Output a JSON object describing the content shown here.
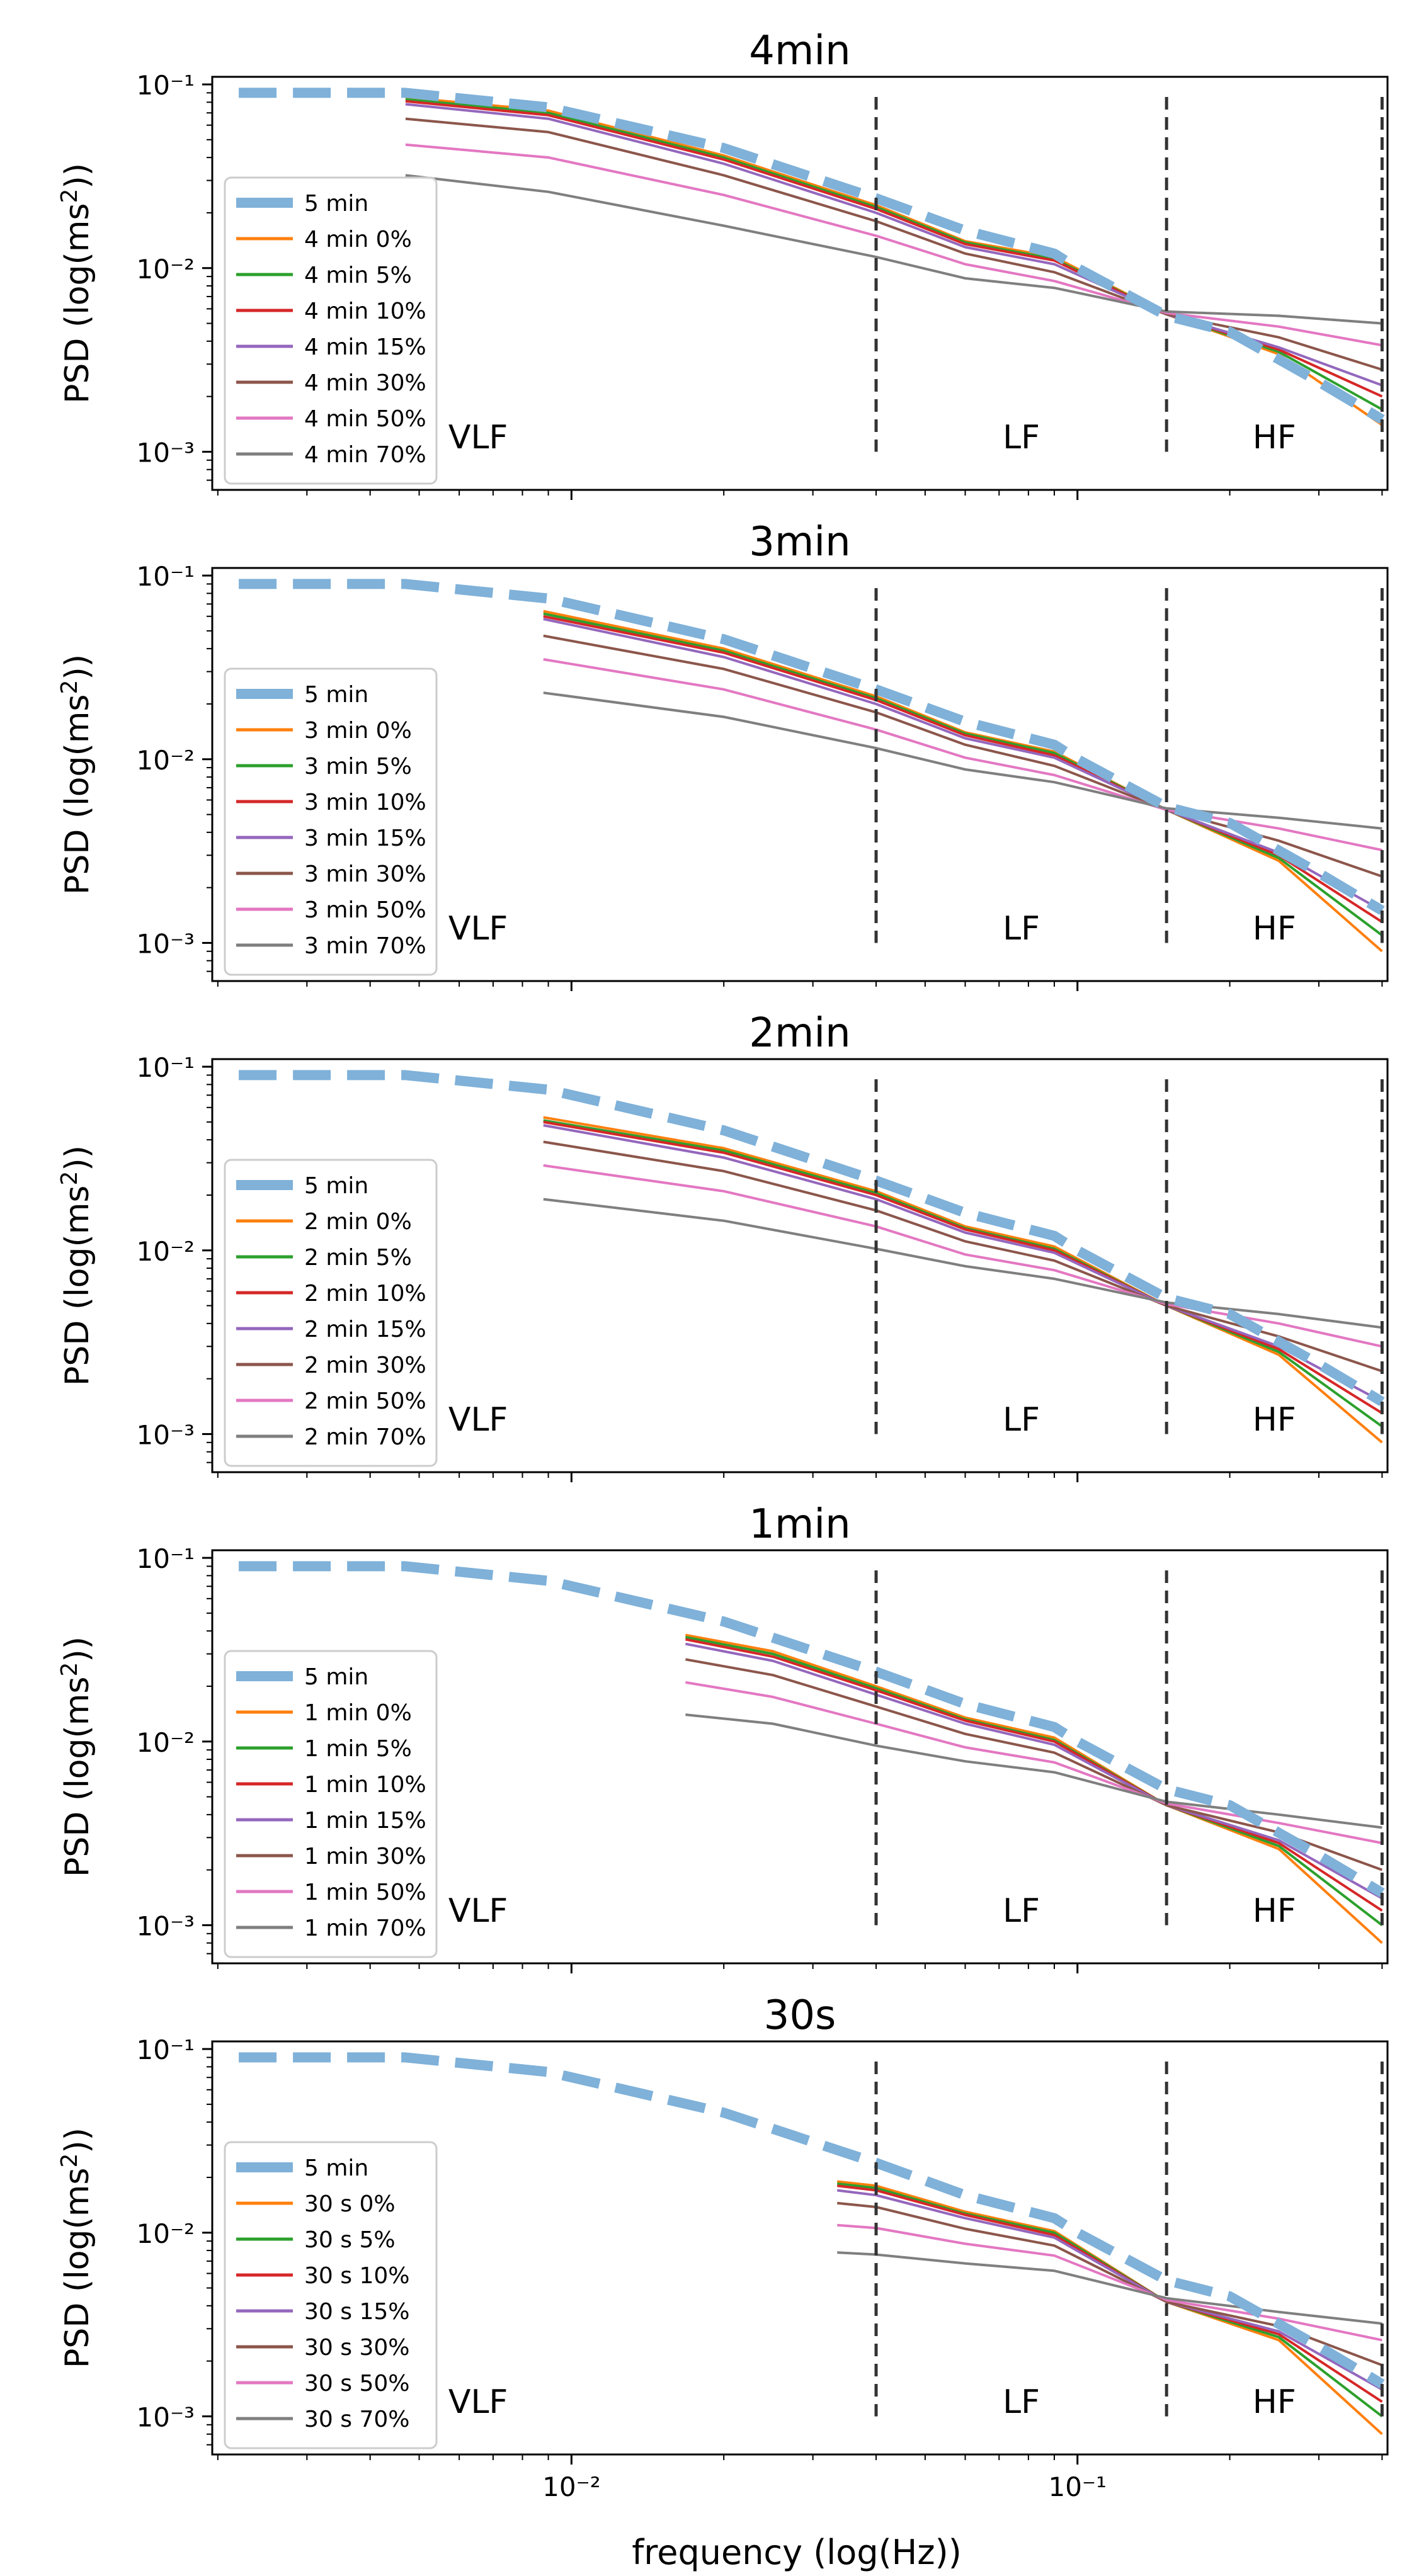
{
  "figure": {
    "xlabel": "frequency (log(Hz))",
    "ylabel_prefix": "PSD (log(ms",
    "ylabel_sup": "2",
    "ylabel_suffix": "))",
    "band_labels": [
      "VLF",
      "LF",
      "HF"
    ],
    "band_boundaries_hz": [
      0.04,
      0.15,
      0.4
    ],
    "x_tick_labels": [
      "10⁻²",
      "10⁻¹"
    ],
    "y_tick_labels": [
      "10⁻¹",
      "10⁻²",
      "10⁻³"
    ]
  },
  "chart_data": [
    {
      "type": "line",
      "title": "4min",
      "xscale": "log",
      "yscale": "log",
      "xlim": [
        0.00195,
        0.41
      ],
      "ylim": [
        0.00062,
        0.11
      ],
      "legend": [
        "5 min",
        "4 min 0%",
        "4 min 5%",
        "4 min 10%",
        "4 min 15%",
        "4 min 30%",
        "4 min 50%",
        "4 min 70%"
      ],
      "reference": {
        "name": "5 min",
        "x": [
          0.0022,
          0.0047,
          0.009,
          0.02,
          0.04,
          0.06,
          0.09,
          0.1,
          0.15,
          0.2,
          0.3,
          0.4
        ],
        "y": [
          0.09,
          0.09,
          0.075,
          0.045,
          0.024,
          0.016,
          0.012,
          0.01,
          0.0055,
          0.0045,
          0.0024,
          0.0015
        ]
      },
      "series": [
        {
          "name": "4 min 0%",
          "x": [
            0.0047,
            0.009,
            0.02,
            0.04,
            0.06,
            0.09,
            0.15,
            0.25,
            0.4
          ],
          "y": [
            0.085,
            0.072,
            0.041,
            0.022,
            0.014,
            0.0115,
            0.0056,
            0.0034,
            0.0014
          ]
        },
        {
          "name": "4 min 5%",
          "x": [
            0.0047,
            0.009,
            0.02,
            0.04,
            0.06,
            0.09,
            0.15,
            0.25,
            0.4
          ],
          "y": [
            0.083,
            0.07,
            0.04,
            0.0215,
            0.0138,
            0.0112,
            0.0056,
            0.0035,
            0.0017
          ]
        },
        {
          "name": "4 min 10%",
          "x": [
            0.0047,
            0.009,
            0.02,
            0.04,
            0.06,
            0.09,
            0.15,
            0.25,
            0.4
          ],
          "y": [
            0.081,
            0.068,
            0.039,
            0.021,
            0.0135,
            0.011,
            0.0056,
            0.0036,
            0.002
          ]
        },
        {
          "name": "4 min 15%",
          "x": [
            0.0047,
            0.009,
            0.02,
            0.04,
            0.06,
            0.09,
            0.15,
            0.25,
            0.4
          ],
          "y": [
            0.078,
            0.065,
            0.037,
            0.02,
            0.013,
            0.0105,
            0.0056,
            0.0037,
            0.0023
          ]
        },
        {
          "name": "4 min 30%",
          "x": [
            0.0047,
            0.009,
            0.02,
            0.04,
            0.06,
            0.09,
            0.15,
            0.25,
            0.4
          ],
          "y": [
            0.065,
            0.055,
            0.032,
            0.018,
            0.012,
            0.0095,
            0.0056,
            0.0042,
            0.0028
          ]
        },
        {
          "name": "4 min 50%",
          "x": [
            0.0047,
            0.009,
            0.02,
            0.04,
            0.06,
            0.09,
            0.15,
            0.25,
            0.4
          ],
          "y": [
            0.047,
            0.04,
            0.025,
            0.015,
            0.0105,
            0.0085,
            0.0057,
            0.0048,
            0.0038
          ]
        },
        {
          "name": "4 min 70%",
          "x": [
            0.0047,
            0.009,
            0.02,
            0.04,
            0.06,
            0.09,
            0.15,
            0.25,
            0.4
          ],
          "y": [
            0.032,
            0.026,
            0.017,
            0.0115,
            0.0088,
            0.0078,
            0.0058,
            0.0055,
            0.005
          ]
        }
      ]
    },
    {
      "type": "line",
      "title": "3min",
      "xscale": "log",
      "yscale": "log",
      "xlim": [
        0.00195,
        0.41
      ],
      "ylim": [
        0.00062,
        0.11
      ],
      "legend": [
        "5 min",
        "3 min 0%",
        "3 min 5%",
        "3 min 10%",
        "3 min 15%",
        "3 min 30%",
        "3 min 50%",
        "3 min 70%"
      ],
      "reference": {
        "name": "5 min",
        "x": [
          0.0022,
          0.0047,
          0.009,
          0.02,
          0.04,
          0.06,
          0.09,
          0.1,
          0.15,
          0.2,
          0.3,
          0.4
        ],
        "y": [
          0.09,
          0.09,
          0.075,
          0.045,
          0.024,
          0.016,
          0.012,
          0.01,
          0.0055,
          0.0045,
          0.0024,
          0.0015
        ]
      },
      "series": [
        {
          "name": "3 min 0%",
          "x": [
            0.0088,
            0.02,
            0.04,
            0.06,
            0.09,
            0.15,
            0.25,
            0.4
          ],
          "y": [
            0.064,
            0.04,
            0.022,
            0.014,
            0.011,
            0.0053,
            0.0028,
            0.0009
          ]
        },
        {
          "name": "3 min 5%",
          "x": [
            0.0088,
            0.02,
            0.04,
            0.06,
            0.09,
            0.15,
            0.25,
            0.4
          ],
          "y": [
            0.062,
            0.039,
            0.0215,
            0.0138,
            0.0108,
            0.0053,
            0.0029,
            0.0011
          ]
        },
        {
          "name": "3 min 10%",
          "x": [
            0.0088,
            0.02,
            0.04,
            0.06,
            0.09,
            0.15,
            0.25,
            0.4
          ],
          "y": [
            0.06,
            0.038,
            0.021,
            0.0135,
            0.0105,
            0.0053,
            0.003,
            0.0013
          ]
        },
        {
          "name": "3 min 15%",
          "x": [
            0.0088,
            0.02,
            0.04,
            0.06,
            0.09,
            0.15,
            0.25,
            0.4
          ],
          "y": [
            0.058,
            0.036,
            0.02,
            0.013,
            0.0102,
            0.0053,
            0.0031,
            0.0015
          ]
        },
        {
          "name": "3 min 30%",
          "x": [
            0.0088,
            0.02,
            0.04,
            0.06,
            0.09,
            0.15,
            0.25,
            0.4
          ],
          "y": [
            0.047,
            0.031,
            0.018,
            0.012,
            0.0092,
            0.0053,
            0.0036,
            0.0023
          ]
        },
        {
          "name": "3 min 50%",
          "x": [
            0.0088,
            0.02,
            0.04,
            0.06,
            0.09,
            0.15,
            0.25,
            0.4
          ],
          "y": [
            0.035,
            0.024,
            0.0145,
            0.0102,
            0.0082,
            0.0053,
            0.0042,
            0.0032
          ]
        },
        {
          "name": "3 min 70%",
          "x": [
            0.0088,
            0.02,
            0.04,
            0.06,
            0.09,
            0.15,
            0.25,
            0.4
          ],
          "y": [
            0.023,
            0.017,
            0.0115,
            0.0088,
            0.0075,
            0.0054,
            0.0048,
            0.0042
          ]
        }
      ]
    },
    {
      "type": "line",
      "title": "2min",
      "xscale": "log",
      "yscale": "log",
      "xlim": [
        0.00195,
        0.41
      ],
      "ylim": [
        0.00062,
        0.11
      ],
      "legend": [
        "5 min",
        "2 min 0%",
        "2 min 5%",
        "2 min 10%",
        "2 min 15%",
        "2 min 30%",
        "2 min 50%",
        "2 min 70%"
      ],
      "reference": {
        "name": "5 min",
        "x": [
          0.0022,
          0.0047,
          0.009,
          0.02,
          0.04,
          0.06,
          0.09,
          0.1,
          0.15,
          0.2,
          0.3,
          0.4
        ],
        "y": [
          0.09,
          0.09,
          0.075,
          0.045,
          0.024,
          0.016,
          0.012,
          0.01,
          0.0055,
          0.0045,
          0.0024,
          0.0015
        ]
      },
      "series": [
        {
          "name": "2 min 0%",
          "x": [
            0.0088,
            0.02,
            0.04,
            0.06,
            0.09,
            0.15,
            0.25,
            0.4
          ],
          "y": [
            0.053,
            0.036,
            0.021,
            0.0135,
            0.0105,
            0.005,
            0.0027,
            0.0009
          ]
        },
        {
          "name": "2 min 5%",
          "x": [
            0.0088,
            0.02,
            0.04,
            0.06,
            0.09,
            0.15,
            0.25,
            0.4
          ],
          "y": [
            0.051,
            0.035,
            0.0205,
            0.0132,
            0.0102,
            0.005,
            0.0028,
            0.0011
          ]
        },
        {
          "name": "2 min 10%",
          "x": [
            0.0088,
            0.02,
            0.04,
            0.06,
            0.09,
            0.15,
            0.25,
            0.4
          ],
          "y": [
            0.05,
            0.034,
            0.02,
            0.013,
            0.01,
            0.005,
            0.0029,
            0.0013
          ]
        },
        {
          "name": "2 min 15%",
          "x": [
            0.0088,
            0.02,
            0.04,
            0.06,
            0.09,
            0.15,
            0.25,
            0.4
          ],
          "y": [
            0.048,
            0.032,
            0.019,
            0.0125,
            0.0097,
            0.005,
            0.003,
            0.0015
          ]
        },
        {
          "name": "2 min 30%",
          "x": [
            0.0088,
            0.02,
            0.04,
            0.06,
            0.09,
            0.15,
            0.25,
            0.4
          ],
          "y": [
            0.039,
            0.027,
            0.0165,
            0.0112,
            0.0088,
            0.005,
            0.0034,
            0.0022
          ]
        },
        {
          "name": "2 min 50%",
          "x": [
            0.0088,
            0.02,
            0.04,
            0.06,
            0.09,
            0.15,
            0.25,
            0.4
          ],
          "y": [
            0.029,
            0.021,
            0.0135,
            0.0095,
            0.0078,
            0.0051,
            0.004,
            0.003
          ]
        },
        {
          "name": "2 min 70%",
          "x": [
            0.0088,
            0.02,
            0.04,
            0.06,
            0.09,
            0.15,
            0.25,
            0.4
          ],
          "y": [
            0.019,
            0.0145,
            0.0102,
            0.0082,
            0.007,
            0.0052,
            0.0045,
            0.0038
          ]
        }
      ]
    },
    {
      "type": "line",
      "title": "1min",
      "xscale": "log",
      "yscale": "log",
      "xlim": [
        0.00195,
        0.41
      ],
      "ylim": [
        0.00062,
        0.11
      ],
      "legend": [
        "5 min",
        "1 min 0%",
        "1 min 5%",
        "1 min 10%",
        "1 min 15%",
        "1 min 30%",
        "1 min 50%",
        "1 min 70%"
      ],
      "reference": {
        "name": "5 min",
        "x": [
          0.0022,
          0.0047,
          0.009,
          0.02,
          0.04,
          0.06,
          0.09,
          0.1,
          0.15,
          0.2,
          0.3,
          0.4
        ],
        "y": [
          0.09,
          0.09,
          0.075,
          0.045,
          0.024,
          0.016,
          0.012,
          0.01,
          0.0055,
          0.0045,
          0.0024,
          0.0015
        ]
      },
      "series": [
        {
          "name": "1 min 0%",
          "x": [
            0.0168,
            0.025,
            0.04,
            0.06,
            0.09,
            0.15,
            0.25,
            0.4
          ],
          "y": [
            0.038,
            0.031,
            0.02,
            0.0135,
            0.0105,
            0.0045,
            0.0026,
            0.0008
          ]
        },
        {
          "name": "1 min 5%",
          "x": [
            0.0168,
            0.025,
            0.04,
            0.06,
            0.09,
            0.15,
            0.25,
            0.4
          ],
          "y": [
            0.037,
            0.03,
            0.0195,
            0.0132,
            0.0102,
            0.0045,
            0.0027,
            0.001
          ]
        },
        {
          "name": "1 min 10%",
          "x": [
            0.0168,
            0.025,
            0.04,
            0.06,
            0.09,
            0.15,
            0.25,
            0.4
          ],
          "y": [
            0.036,
            0.029,
            0.019,
            0.013,
            0.01,
            0.0045,
            0.0028,
            0.0012
          ]
        },
        {
          "name": "1 min 15%",
          "x": [
            0.0168,
            0.025,
            0.04,
            0.06,
            0.09,
            0.15,
            0.25,
            0.4
          ],
          "y": [
            0.034,
            0.0275,
            0.018,
            0.0125,
            0.0096,
            0.0045,
            0.0029,
            0.0014
          ]
        },
        {
          "name": "1 min 30%",
          "x": [
            0.0168,
            0.025,
            0.04,
            0.06,
            0.09,
            0.15,
            0.25,
            0.4
          ],
          "y": [
            0.028,
            0.023,
            0.0155,
            0.011,
            0.0087,
            0.0045,
            0.0032,
            0.002
          ]
        },
        {
          "name": "1 min 50%",
          "x": [
            0.0168,
            0.025,
            0.04,
            0.06,
            0.09,
            0.15,
            0.25,
            0.4
          ],
          "y": [
            0.021,
            0.0175,
            0.0125,
            0.0093,
            0.0077,
            0.0046,
            0.0036,
            0.0028
          ]
        },
        {
          "name": "1 min 70%",
          "x": [
            0.0168,
            0.025,
            0.04,
            0.06,
            0.09,
            0.15,
            0.25,
            0.4
          ],
          "y": [
            0.014,
            0.0125,
            0.0095,
            0.0078,
            0.0068,
            0.0047,
            0.004,
            0.0034
          ]
        }
      ]
    },
    {
      "type": "line",
      "title": "30s",
      "xscale": "log",
      "yscale": "log",
      "xlim": [
        0.00195,
        0.41
      ],
      "ylim": [
        0.00062,
        0.11
      ],
      "legend": [
        "5 min",
        "30 s 0%",
        "30 s 5%",
        "30 s 10%",
        "30 s 15%",
        "30 s 30%",
        "30 s 50%",
        "30 s 70%"
      ],
      "reference": {
        "name": "5 min",
        "x": [
          0.0022,
          0.0047,
          0.009,
          0.02,
          0.04,
          0.06,
          0.09,
          0.1,
          0.15,
          0.2,
          0.3,
          0.4
        ],
        "y": [
          0.09,
          0.09,
          0.075,
          0.045,
          0.024,
          0.016,
          0.012,
          0.01,
          0.0055,
          0.0045,
          0.0024,
          0.0015
        ]
      },
      "series": [
        {
          "name": "30 s 0%",
          "x": [
            0.0335,
            0.04,
            0.06,
            0.09,
            0.15,
            0.25,
            0.4
          ],
          "y": [
            0.019,
            0.018,
            0.013,
            0.0102,
            0.0042,
            0.0026,
            0.0008
          ]
        },
        {
          "name": "30 s 5%",
          "x": [
            0.0335,
            0.04,
            0.06,
            0.09,
            0.15,
            0.25,
            0.4
          ],
          "y": [
            0.0185,
            0.0175,
            0.0127,
            0.01,
            0.0042,
            0.0027,
            0.001
          ]
        },
        {
          "name": "30 s 10%",
          "x": [
            0.0335,
            0.04,
            0.06,
            0.09,
            0.15,
            0.25,
            0.4
          ],
          "y": [
            0.018,
            0.017,
            0.0125,
            0.0097,
            0.0042,
            0.0028,
            0.0012
          ]
        },
        {
          "name": "30 s 15%",
          "x": [
            0.0335,
            0.04,
            0.06,
            0.09,
            0.15,
            0.25,
            0.4
          ],
          "y": [
            0.017,
            0.016,
            0.012,
            0.0094,
            0.0042,
            0.0029,
            0.0014
          ]
        },
        {
          "name": "30 s 30%",
          "x": [
            0.0335,
            0.04,
            0.06,
            0.09,
            0.15,
            0.25,
            0.4
          ],
          "y": [
            0.0145,
            0.0138,
            0.0105,
            0.0085,
            0.0042,
            0.0031,
            0.0019
          ]
        },
        {
          "name": "30 s 50%",
          "x": [
            0.0335,
            0.04,
            0.06,
            0.09,
            0.15,
            0.25,
            0.4
          ],
          "y": [
            0.011,
            0.0106,
            0.0087,
            0.0075,
            0.0043,
            0.0034,
            0.0026
          ]
        },
        {
          "name": "30 s 70%",
          "x": [
            0.0335,
            0.04,
            0.06,
            0.09,
            0.15,
            0.25,
            0.4
          ],
          "y": [
            0.0078,
            0.0076,
            0.0068,
            0.0062,
            0.0044,
            0.0037,
            0.0032
          ]
        }
      ]
    }
  ],
  "colors": {
    "reference": "#7fb1d9",
    "series": [
      "#ff7f0e",
      "#2ca02c",
      "#d62728",
      "#9467bd",
      "#8c564b",
      "#e377c2",
      "#7f7f7f"
    ],
    "boundary": "#333333",
    "frame": "#000000"
  }
}
